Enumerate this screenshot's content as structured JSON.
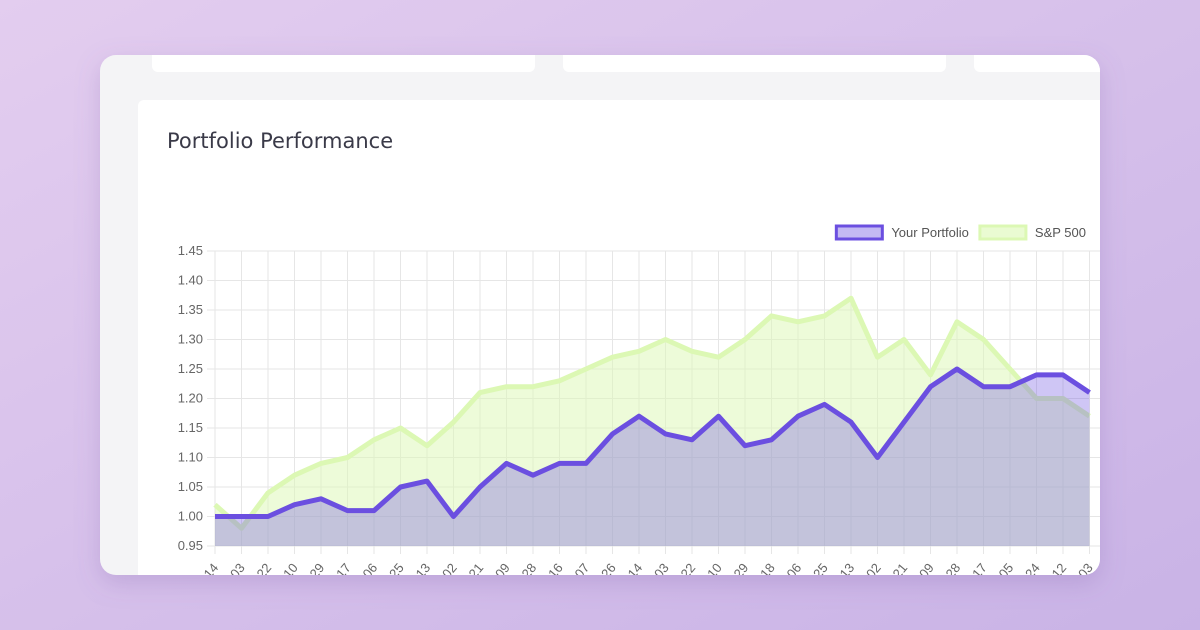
{
  "chart_data": {
    "type": "line",
    "title": "Portfolio Performance",
    "categories": [
      "14",
      "03",
      "22",
      "10",
      "29",
      "17",
      "06",
      "25",
      "13",
      "02",
      "21",
      "09",
      "28",
      "16",
      "07",
      "26",
      "14",
      "03",
      "22",
      "10",
      "29",
      "18",
      "06",
      "25",
      "13",
      "02",
      "21",
      "09",
      "28",
      "17",
      "05",
      "24",
      "12",
      "03"
    ],
    "series": [
      {
        "name": "Your Portfolio",
        "color": "#6b4fe0",
        "values": [
          1.0,
          1.0,
          1.0,
          1.02,
          1.03,
          1.01,
          1.01,
          1.05,
          1.06,
          1.0,
          1.05,
          1.09,
          1.07,
          1.09,
          1.09,
          1.14,
          1.17,
          1.14,
          1.13,
          1.17,
          1.12,
          1.13,
          1.17,
          1.19,
          1.16,
          1.1,
          1.16,
          1.22,
          1.25,
          1.22,
          1.22,
          1.24,
          1.24,
          1.21
        ]
      },
      {
        "name": "S&P 500",
        "color": "#dcf8b4",
        "values": [
          1.02,
          0.98,
          1.04,
          1.07,
          1.09,
          1.1,
          1.13,
          1.15,
          1.12,
          1.16,
          1.21,
          1.22,
          1.22,
          1.23,
          1.25,
          1.27,
          1.28,
          1.3,
          1.28,
          1.27,
          1.3,
          1.34,
          1.33,
          1.34,
          1.37,
          1.27,
          1.3,
          1.24,
          1.33,
          1.3,
          1.25,
          1.2,
          1.2,
          1.17
        ]
      }
    ],
    "ylim": [
      0.95,
      1.45
    ],
    "yticks": [
      0.95,
      {
        "value": 1,
        "label": "1.00"
      },
      1.05,
      {
        "value": 1.1,
        "label": "1.10"
      },
      1.15,
      {
        "value": 1.2,
        "label": "1.20"
      },
      1.25,
      {
        "value": 1.3,
        "label": "1.30"
      },
      1.35,
      {
        "value": 1.4,
        "label": "1.40"
      },
      1.45
    ],
    "grid": true,
    "legend": "top-right"
  }
}
